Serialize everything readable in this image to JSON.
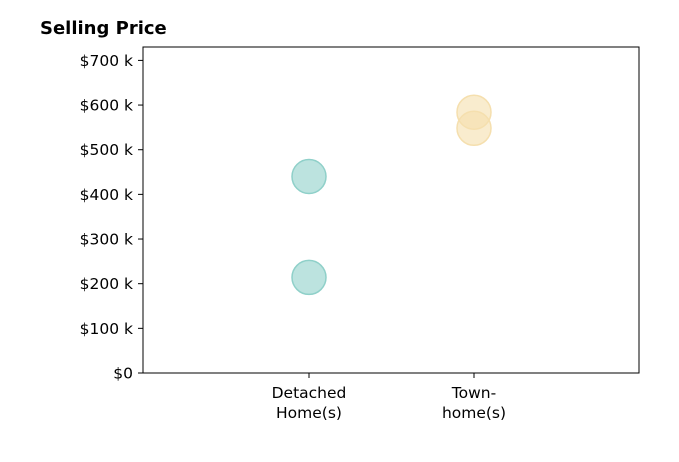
{
  "chart_data": {
    "type": "scatter",
    "title": "Selling Price",
    "xlabel": "",
    "ylabel": "",
    "categories": [
      [
        "Detached",
        "Home(s)"
      ],
      [
        "Town-",
        "home(s)"
      ]
    ],
    "ylim": [
      0,
      730000
    ],
    "yticks": [
      0,
      100000,
      200000,
      300000,
      400000,
      500000,
      600000,
      700000
    ],
    "ytick_labels": [
      "$0",
      "$100 k",
      "$200 k",
      "$300 k",
      "$400 k",
      "$500 k",
      "$600 k",
      "$700 k"
    ],
    "grid": false,
    "series": [
      {
        "category_index": 0,
        "values": [
          440000,
          214000
        ],
        "color": "#8fd0c9"
      },
      {
        "category_index": 1,
        "values": [
          584000,
          548000
        ],
        "color": "#f5dfae"
      }
    ]
  }
}
